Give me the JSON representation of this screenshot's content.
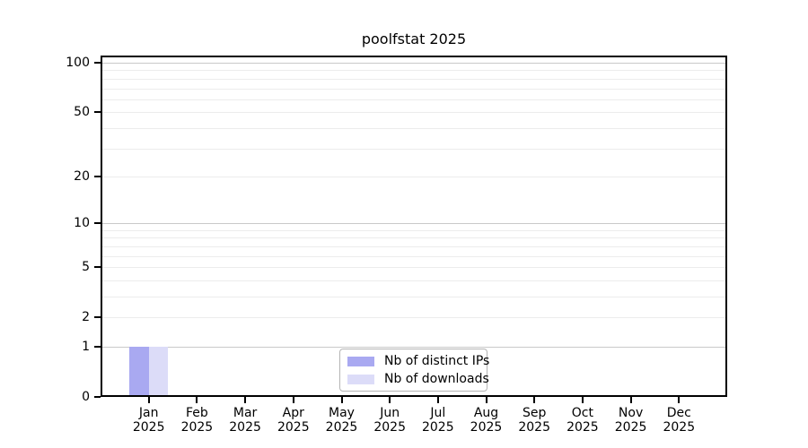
{
  "chart_data": {
    "type": "bar",
    "title": "poolfstat 2025",
    "categories": [
      "Jan 2025",
      "Feb 2025",
      "Mar 2025",
      "Apr 2025",
      "May 2025",
      "Jun 2025",
      "Jul 2025",
      "Aug 2025",
      "Sep 2025",
      "Oct 2025",
      "Nov 2025",
      "Dec 2025"
    ],
    "series": [
      {
        "name": "Nb of distinct IPs",
        "color": "#a9a9f1",
        "values": [
          1,
          0,
          0,
          0,
          0,
          0,
          0,
          0,
          0,
          0,
          0,
          0
        ]
      },
      {
        "name": "Nb of downloads",
        "color": "#dcdcf8",
        "values": [
          1,
          0,
          0,
          0,
          0,
          0,
          0,
          0,
          0,
          0,
          0,
          0
        ]
      }
    ],
    "yticks": [
      0,
      1,
      2,
      5,
      10,
      20,
      50,
      100
    ],
    "ylim": [
      0,
      110
    ],
    "scale": "log1p",
    "grid": "horizontal major (1,10,100) + minor (2-9, 20-90)",
    "legend_position": "bottom-center",
    "xlabel": "",
    "ylabel": ""
  }
}
